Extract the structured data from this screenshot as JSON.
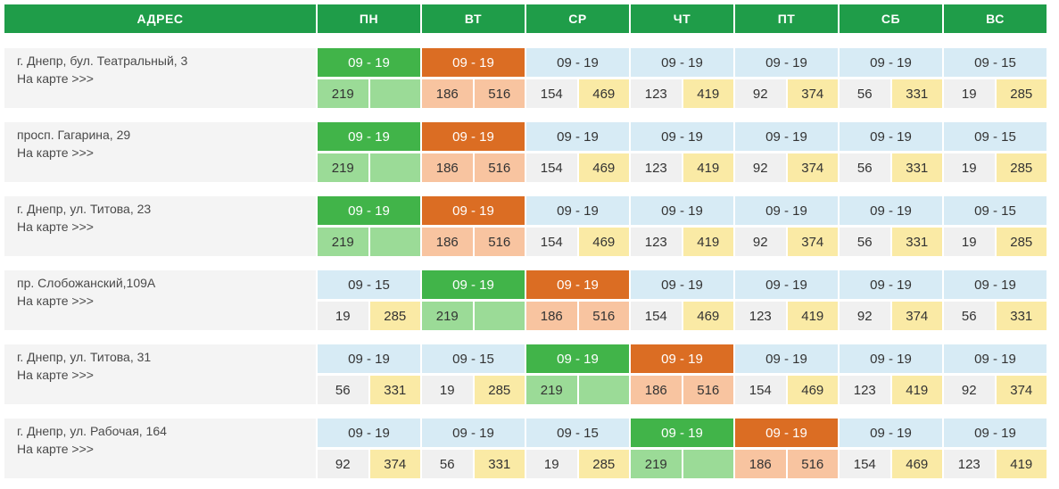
{
  "header": {
    "address": "АДРЕС",
    "days": [
      "ПН",
      "ВТ",
      "СР",
      "ЧТ",
      "ПТ",
      "СБ",
      "ВС"
    ]
  },
  "colors": {
    "header_green": "#1f9d49",
    "today_green": "#41b449",
    "tomorrow_orange": "#db6d23",
    "regular_blue": "#d7ebf5"
  },
  "map_link": "На карте >>>",
  "rows": [
    {
      "address": "г. Днепр, бул. Театральный, 3",
      "days": [
        {
          "hours": "09 - 19",
          "a": "219",
          "b": "",
          "kind": "g"
        },
        {
          "hours": "09 - 19",
          "a": "186",
          "b": "516",
          "kind": "o"
        },
        {
          "hours": "09 - 19",
          "a": "154",
          "b": "469",
          "kind": "b"
        },
        {
          "hours": "09 - 19",
          "a": "123",
          "b": "419",
          "kind": "b"
        },
        {
          "hours": "09 - 19",
          "a": "92",
          "b": "374",
          "kind": "b"
        },
        {
          "hours": "09 - 19",
          "a": "56",
          "b": "331",
          "kind": "b"
        },
        {
          "hours": "09 - 15",
          "a": "19",
          "b": "285",
          "kind": "b"
        }
      ]
    },
    {
      "address": "просп. Гагарина, 29",
      "days": [
        {
          "hours": "09 - 19",
          "a": "219",
          "b": "",
          "kind": "g"
        },
        {
          "hours": "09 - 19",
          "a": "186",
          "b": "516",
          "kind": "o"
        },
        {
          "hours": "09 - 19",
          "a": "154",
          "b": "469",
          "kind": "b"
        },
        {
          "hours": "09 - 19",
          "a": "123",
          "b": "419",
          "kind": "b"
        },
        {
          "hours": "09 - 19",
          "a": "92",
          "b": "374",
          "kind": "b"
        },
        {
          "hours": "09 - 19",
          "a": "56",
          "b": "331",
          "kind": "b"
        },
        {
          "hours": "09 - 15",
          "a": "19",
          "b": "285",
          "kind": "b"
        }
      ]
    },
    {
      "address": "г. Днепр, ул. Титова, 23",
      "days": [
        {
          "hours": "09 - 19",
          "a": "219",
          "b": "",
          "kind": "g"
        },
        {
          "hours": "09 - 19",
          "a": "186",
          "b": "516",
          "kind": "o"
        },
        {
          "hours": "09 - 19",
          "a": "154",
          "b": "469",
          "kind": "b"
        },
        {
          "hours": "09 - 19",
          "a": "123",
          "b": "419",
          "kind": "b"
        },
        {
          "hours": "09 - 19",
          "a": "92",
          "b": "374",
          "kind": "b"
        },
        {
          "hours": "09 - 19",
          "a": "56",
          "b": "331",
          "kind": "b"
        },
        {
          "hours": "09 - 15",
          "a": "19",
          "b": "285",
          "kind": "b"
        }
      ]
    },
    {
      "address": "пр. Слобожанский,109А",
      "days": [
        {
          "hours": "09 - 15",
          "a": "19",
          "b": "285",
          "kind": "b"
        },
        {
          "hours": "09 - 19",
          "a": "219",
          "b": "",
          "kind": "g"
        },
        {
          "hours": "09 - 19",
          "a": "186",
          "b": "516",
          "kind": "o"
        },
        {
          "hours": "09 - 19",
          "a": "154",
          "b": "469",
          "kind": "b"
        },
        {
          "hours": "09 - 19",
          "a": "123",
          "b": "419",
          "kind": "b"
        },
        {
          "hours": "09 - 19",
          "a": "92",
          "b": "374",
          "kind": "b"
        },
        {
          "hours": "09 - 19",
          "a": "56",
          "b": "331",
          "kind": "b"
        }
      ]
    },
    {
      "address": "г. Днепр, ул. Титова, 31",
      "days": [
        {
          "hours": "09 - 19",
          "a": "56",
          "b": "331",
          "kind": "b"
        },
        {
          "hours": "09 - 15",
          "a": "19",
          "b": "285",
          "kind": "b"
        },
        {
          "hours": "09 - 19",
          "a": "219",
          "b": "",
          "kind": "g"
        },
        {
          "hours": "09 - 19",
          "a": "186",
          "b": "516",
          "kind": "o"
        },
        {
          "hours": "09 - 19",
          "a": "154",
          "b": "469",
          "kind": "b"
        },
        {
          "hours": "09 - 19",
          "a": "123",
          "b": "419",
          "kind": "b"
        },
        {
          "hours": "09 - 19",
          "a": "92",
          "b": "374",
          "kind": "b"
        }
      ]
    },
    {
      "address": "г. Днепр, ул. Рабочая, 164",
      "days": [
        {
          "hours": "09 - 19",
          "a": "92",
          "b": "374",
          "kind": "b"
        },
        {
          "hours": "09 - 19",
          "a": "56",
          "b": "331",
          "kind": "b"
        },
        {
          "hours": "09 - 15",
          "a": "19",
          "b": "285",
          "kind": "b"
        },
        {
          "hours": "09 - 19",
          "a": "219",
          "b": "",
          "kind": "g"
        },
        {
          "hours": "09 - 19",
          "a": "186",
          "b": "516",
          "kind": "o"
        },
        {
          "hours": "09 - 19",
          "a": "154",
          "b": "469",
          "kind": "b"
        },
        {
          "hours": "09 - 19",
          "a": "123",
          "b": "419",
          "kind": "b"
        }
      ]
    }
  ]
}
